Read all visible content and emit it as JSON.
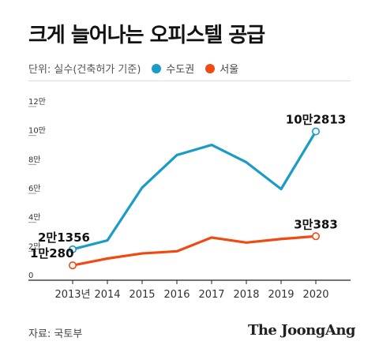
{
  "title": "크게 늘어나는 오피스텔 공급",
  "unit_label": "단위: 실수(건축허가 기준)",
  "legend": [
    {
      "label": "수도권",
      "color": "#1a9cc6"
    },
    {
      "label": "서울",
      "color": "#f04a12"
    }
  ],
  "source": "자료: 국토부",
  "brand": "The JoongAng",
  "chart_data": {
    "type": "line",
    "x": [
      "2013년",
      "2014",
      "2015",
      "2016",
      "2017",
      "2018",
      "2019",
      "2020"
    ],
    "ylim": [
      0,
      120000
    ],
    "y_ticks": [
      {
        "value": 0,
        "label": "0"
      },
      {
        "value": 20000,
        "label": "2만"
      },
      {
        "value": 40000,
        "label": "4만"
      },
      {
        "value": 60000,
        "label": "6만"
      },
      {
        "value": 80000,
        "label": "8만"
      },
      {
        "value": 100000,
        "label": "10만"
      },
      {
        "value": 120000,
        "label": "12만"
      }
    ],
    "grid": false,
    "series": [
      {
        "name": "수도권",
        "color": "#1a9cc6",
        "values": [
          21356,
          27500,
          64000,
          86500,
          93500,
          81500,
          63000,
          102813
        ]
      },
      {
        "name": "서울",
        "color": "#f04a12",
        "values": [
          10280,
          15000,
          18500,
          20000,
          29500,
          26000,
          28500,
          30383
        ]
      }
    ],
    "annotations": [
      {
        "series": 0,
        "index": 0,
        "text": "2만1356"
      },
      {
        "series": 0,
        "index": 7,
        "text": "10만2813"
      },
      {
        "series": 1,
        "index": 0,
        "text": "1만280"
      },
      {
        "series": 1,
        "index": 7,
        "text": "3만383"
      }
    ]
  }
}
